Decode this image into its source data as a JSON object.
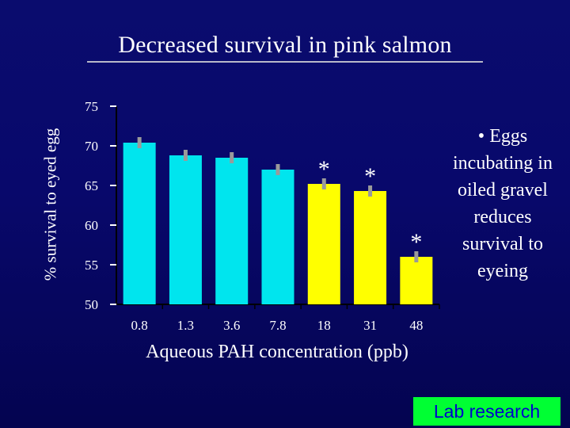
{
  "chart_data": {
    "type": "bar",
    "title": "Decreased survival in pink salmon",
    "xlabel": "Aqueous PAH concentration (ppb)",
    "ylabel": "% survival to eyed egg",
    "categories": [
      "0.8",
      "1.3",
      "3.6",
      "7.8",
      "18",
      "31",
      "48"
    ],
    "values": [
      70.4,
      68.8,
      68.5,
      67.0,
      65.2,
      64.3,
      56.0
    ],
    "error": [
      0.7,
      0.7,
      0.7,
      0.7,
      0.7,
      0.7,
      0.7
    ],
    "significant": [
      false,
      false,
      false,
      false,
      true,
      true,
      true
    ],
    "significance_marker": "*",
    "ylim": [
      50,
      75
    ],
    "yticks": [
      "50",
      "55",
      "60",
      "65",
      "70",
      "75"
    ],
    "colors": {
      "control": "#00e5ee",
      "significant": "#ffff00",
      "error_bar": "#9a9a9a"
    },
    "grid": false,
    "legend": "none"
  },
  "side_note": "• Eggs incubating in oiled gravel reduces survival to eyeing",
  "badge": "Lab research"
}
